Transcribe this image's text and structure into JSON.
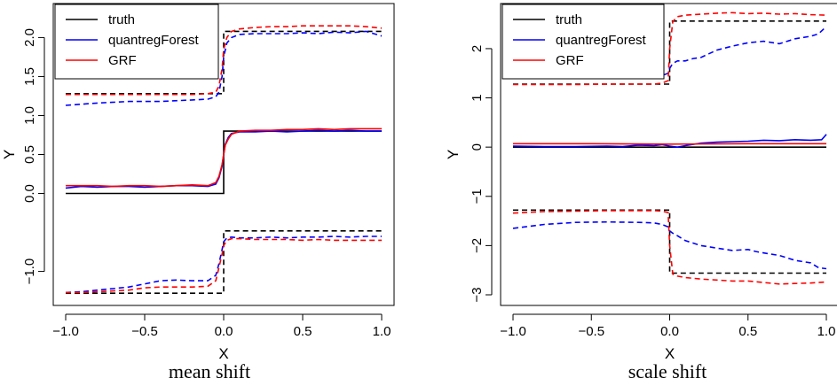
{
  "chart_data": [
    {
      "type": "line",
      "caption": "mean shift",
      "xlabel": "X",
      "ylabel": "Y",
      "xlim": [
        -1.0,
        1.0
      ],
      "ylim": [
        -1.3,
        2.3
      ],
      "xticks": [
        -1.0,
        -0.5,
        0.0,
        0.5,
        1.0
      ],
      "xtick_labels": [
        "−1.0",
        "−0.5",
        "0.0",
        "0.5",
        "1.0"
      ],
      "yticks": [
        -1.0,
        0.0,
        0.5,
        1.0,
        1.5,
        2.0
      ],
      "ytick_labels": [
        "−1.0",
        "0.0",
        "0.5",
        "1.0",
        "1.5",
        "2.0"
      ],
      "grid": false,
      "legend": {
        "placement": "top-left",
        "entries": [
          {
            "label": "truth",
            "color": "#000000"
          },
          {
            "label": "quantregForest",
            "color": "#0000ff"
          },
          {
            "label": "GRF",
            "color": "#ff0000"
          }
        ]
      },
      "series": [
        {
          "name": "truth",
          "quantile": "median",
          "color": "#000000",
          "dash": false,
          "x": [
            -1.0,
            0.0,
            0.0,
            1.0
          ],
          "y": [
            0.0,
            0.0,
            0.8,
            0.8
          ]
        },
        {
          "name": "truth",
          "quantile": "upper",
          "color": "#000000",
          "dash": true,
          "x": [
            -1.0,
            0.0,
            0.0,
            1.0
          ],
          "y": [
            1.28,
            1.28,
            2.08,
            2.08
          ]
        },
        {
          "name": "truth",
          "quantile": "lower",
          "color": "#000000",
          "dash": true,
          "x": [
            -1.0,
            0.0,
            0.0,
            1.0
          ],
          "y": [
            -1.28,
            -1.28,
            -0.48,
            -0.48
          ]
        },
        {
          "name": "quantregForest",
          "quantile": "median",
          "color": "#0000ff",
          "dash": false,
          "x": [
            -1.0,
            -0.9,
            -0.8,
            -0.7,
            -0.6,
            -0.5,
            -0.4,
            -0.3,
            -0.2,
            -0.1,
            -0.05,
            -0.03,
            -0.01,
            0.0,
            0.01,
            0.03,
            0.05,
            0.1,
            0.2,
            0.3,
            0.4,
            0.5,
            0.6,
            0.7,
            0.8,
            0.9,
            1.0
          ],
          "y": [
            0.07,
            0.09,
            0.08,
            0.09,
            0.09,
            0.08,
            0.09,
            0.1,
            0.1,
            0.09,
            0.12,
            0.2,
            0.35,
            0.5,
            0.63,
            0.72,
            0.77,
            0.79,
            0.79,
            0.8,
            0.79,
            0.8,
            0.81,
            0.8,
            0.81,
            0.8,
            0.8
          ]
        },
        {
          "name": "GRF",
          "quantile": "median",
          "color": "#ff0000",
          "dash": false,
          "x": [
            -1.0,
            -0.9,
            -0.8,
            -0.7,
            -0.6,
            -0.5,
            -0.4,
            -0.3,
            -0.2,
            -0.1,
            -0.05,
            -0.03,
            -0.01,
            0.0,
            0.01,
            0.03,
            0.05,
            0.1,
            0.2,
            0.3,
            0.4,
            0.5,
            0.6,
            0.7,
            0.8,
            0.9,
            1.0
          ],
          "y": [
            0.1,
            0.1,
            0.1,
            0.09,
            0.1,
            0.1,
            0.09,
            0.1,
            0.11,
            0.1,
            0.14,
            0.22,
            0.37,
            0.5,
            0.62,
            0.7,
            0.76,
            0.8,
            0.81,
            0.81,
            0.82,
            0.82,
            0.83,
            0.82,
            0.83,
            0.83,
            0.83
          ]
        },
        {
          "name": "quantregForest",
          "quantile": "upper",
          "color": "#0000ff",
          "dash": true,
          "x": [
            -1.0,
            -0.8,
            -0.6,
            -0.4,
            -0.2,
            -0.1,
            -0.05,
            -0.03,
            -0.01,
            0.0,
            0.02,
            0.05,
            0.1,
            0.2,
            0.3,
            0.4,
            0.5,
            0.6,
            0.7,
            0.8,
            0.9,
            0.95,
            1.0
          ],
          "y": [
            1.13,
            1.16,
            1.18,
            1.18,
            1.2,
            1.21,
            1.24,
            1.3,
            1.5,
            1.75,
            1.93,
            2.0,
            2.04,
            2.05,
            2.05,
            2.05,
            2.06,
            2.05,
            2.07,
            2.06,
            2.08,
            2.05,
            2.02
          ]
        },
        {
          "name": "GRF",
          "quantile": "upper",
          "color": "#ff0000",
          "dash": true,
          "x": [
            -1.0,
            -0.8,
            -0.6,
            -0.4,
            -0.2,
            -0.1,
            -0.05,
            -0.03,
            -0.01,
            0.0,
            0.02,
            0.05,
            0.1,
            0.2,
            0.3,
            0.4,
            0.5,
            0.6,
            0.7,
            0.8,
            0.9,
            1.0
          ],
          "y": [
            1.27,
            1.27,
            1.27,
            1.27,
            1.27,
            1.28,
            1.3,
            1.38,
            1.6,
            1.85,
            2.0,
            2.08,
            2.11,
            2.13,
            2.14,
            2.14,
            2.15,
            2.15,
            2.15,
            2.15,
            2.14,
            2.12
          ]
        },
        {
          "name": "quantregForest",
          "quantile": "lower",
          "color": "#0000ff",
          "dash": true,
          "x": [
            -1.0,
            -0.9,
            -0.8,
            -0.7,
            -0.6,
            -0.5,
            -0.4,
            -0.3,
            -0.2,
            -0.1,
            -0.05,
            -0.03,
            -0.01,
            0.0,
            0.02,
            0.05,
            0.1,
            0.2,
            0.3,
            0.4,
            0.5,
            0.6,
            0.7,
            0.8,
            0.9,
            1.0
          ],
          "y": [
            -1.27,
            -1.26,
            -1.24,
            -1.22,
            -1.2,
            -1.16,
            -1.12,
            -1.11,
            -1.12,
            -1.12,
            -1.05,
            -0.9,
            -0.72,
            -0.62,
            -0.57,
            -0.56,
            -0.57,
            -0.57,
            -0.56,
            -0.57,
            -0.56,
            -0.56,
            -0.55,
            -0.56,
            -0.55,
            -0.55
          ]
        },
        {
          "name": "GRF",
          "quantile": "lower",
          "color": "#ff0000",
          "dash": true,
          "x": [
            -1.0,
            -0.9,
            -0.8,
            -0.7,
            -0.6,
            -0.5,
            -0.4,
            -0.3,
            -0.2,
            -0.1,
            -0.05,
            -0.03,
            -0.01,
            0.0,
            0.02,
            0.05,
            0.1,
            0.2,
            0.3,
            0.4,
            0.5,
            0.6,
            0.7,
            0.8,
            0.9,
            1.0
          ],
          "y": [
            -1.27,
            -1.27,
            -1.26,
            -1.25,
            -1.24,
            -1.21,
            -1.2,
            -1.2,
            -1.2,
            -1.19,
            -1.12,
            -0.95,
            -0.78,
            -0.67,
            -0.6,
            -0.58,
            -0.58,
            -0.59,
            -0.59,
            -0.59,
            -0.6,
            -0.59,
            -0.6,
            -0.6,
            -0.6,
            -0.6
          ]
        }
      ]
    },
    {
      "type": "line",
      "caption": "scale shift",
      "xlabel": "X",
      "ylabel": "Y",
      "xlim": [
        -1.0,
        1.0
      ],
      "ylim": [
        -3.0,
        2.7
      ],
      "xticks": [
        -1.0,
        -0.5,
        0.0,
        0.5,
        1.0
      ],
      "xtick_labels": [
        "−1.0",
        "−0.5",
        "0.0",
        "0.5",
        "1.0"
      ],
      "yticks": [
        -3,
        -2,
        -1,
        0,
        1,
        2
      ],
      "ytick_labels": [
        "−3",
        "−2",
        "−1",
        "0",
        "1",
        "2"
      ],
      "grid": false,
      "legend": {
        "placement": "top-left",
        "entries": [
          {
            "label": "truth",
            "color": "#000000"
          },
          {
            "label": "quantregForest",
            "color": "#0000ff"
          },
          {
            "label": "GRF",
            "color": "#ff0000"
          }
        ]
      },
      "series": [
        {
          "name": "truth",
          "quantile": "median",
          "color": "#000000",
          "dash": false,
          "x": [
            -1.0,
            1.0
          ],
          "y": [
            0.0,
            0.0
          ]
        },
        {
          "name": "truth",
          "quantile": "upper",
          "color": "#000000",
          "dash": true,
          "x": [
            -1.0,
            0.0,
            0.0,
            1.0
          ],
          "y": [
            1.28,
            1.28,
            2.56,
            2.56
          ]
        },
        {
          "name": "truth",
          "quantile": "lower",
          "color": "#000000",
          "dash": true,
          "x": [
            -1.0,
            0.0,
            0.0,
            1.0
          ],
          "y": [
            -1.28,
            -1.28,
            -2.56,
            -2.56
          ]
        },
        {
          "name": "quantregForest",
          "quantile": "median",
          "color": "#0000ff",
          "dash": false,
          "x": [
            -1.0,
            -0.8,
            -0.6,
            -0.4,
            -0.3,
            -0.2,
            -0.1,
            -0.05,
            0.0,
            0.05,
            0.1,
            0.2,
            0.3,
            0.4,
            0.5,
            0.6,
            0.7,
            0.8,
            0.9,
            0.97,
            0.99,
            1.0
          ],
          "y": [
            0.02,
            0.01,
            0.01,
            0.02,
            0.01,
            0.04,
            0.03,
            0.05,
            0.02,
            0.0,
            0.03,
            0.08,
            0.1,
            0.11,
            0.12,
            0.14,
            0.13,
            0.15,
            0.14,
            0.15,
            0.22,
            0.26
          ]
        },
        {
          "name": "GRF",
          "quantile": "median",
          "color": "#ff0000",
          "dash": false,
          "x": [
            -1.0,
            -0.5,
            0.0,
            0.5,
            1.0
          ],
          "y": [
            0.07,
            0.07,
            0.06,
            0.07,
            0.07
          ]
        },
        {
          "name": "quantregForest",
          "quantile": "upper",
          "color": "#0000ff",
          "dash": true,
          "x": [
            -1.0,
            -0.8,
            -0.6,
            -0.4,
            -0.2,
            -0.1,
            -0.05,
            -0.01,
            0.0,
            0.02,
            0.05,
            0.1,
            0.15,
            0.2,
            0.3,
            0.4,
            0.5,
            0.6,
            0.7,
            0.8,
            0.9,
            0.95,
            1.0
          ],
          "y": [
            1.45,
            1.43,
            1.47,
            1.46,
            1.47,
            1.46,
            1.45,
            1.5,
            1.6,
            1.7,
            1.75,
            1.75,
            1.8,
            1.82,
            1.97,
            2.05,
            2.12,
            2.15,
            2.1,
            2.2,
            2.25,
            2.3,
            2.45
          ]
        },
        {
          "name": "GRF",
          "quantile": "upper",
          "color": "#ff0000",
          "dash": true,
          "x": [
            -1.0,
            -0.8,
            -0.6,
            -0.4,
            -0.2,
            -0.1,
            -0.05,
            -0.01,
            0.0,
            0.02,
            0.05,
            0.1,
            0.2,
            0.3,
            0.4,
            0.5,
            0.6,
            0.7,
            0.8,
            0.9,
            1.0
          ],
          "y": [
            1.27,
            1.27,
            1.27,
            1.28,
            1.28,
            1.28,
            1.3,
            1.35,
            2.0,
            2.55,
            2.65,
            2.68,
            2.7,
            2.72,
            2.73,
            2.71,
            2.72,
            2.7,
            2.71,
            2.69,
            2.68
          ]
        },
        {
          "name": "quantregForest",
          "quantile": "lower",
          "color": "#0000ff",
          "dash": true,
          "x": [
            -1.0,
            -0.8,
            -0.6,
            -0.4,
            -0.2,
            -0.1,
            -0.05,
            -0.01,
            0.0,
            0.02,
            0.05,
            0.1,
            0.15,
            0.2,
            0.3,
            0.4,
            0.5,
            0.55,
            0.6,
            0.7,
            0.8,
            0.9,
            0.95,
            1.0
          ],
          "y": [
            -1.65,
            -1.57,
            -1.53,
            -1.52,
            -1.53,
            -1.54,
            -1.57,
            -1.62,
            -1.7,
            -1.75,
            -1.8,
            -1.9,
            -1.95,
            -2.0,
            -2.05,
            -2.1,
            -2.08,
            -2.12,
            -2.15,
            -2.2,
            -2.3,
            -2.35,
            -2.45,
            -2.47
          ]
        },
        {
          "name": "GRF",
          "quantile": "lower",
          "color": "#ff0000",
          "dash": true,
          "x": [
            -1.0,
            -0.8,
            -0.6,
            -0.4,
            -0.2,
            -0.1,
            -0.05,
            -0.01,
            0.0,
            0.02,
            0.05,
            0.1,
            0.2,
            0.3,
            0.4,
            0.5,
            0.6,
            0.7,
            0.8,
            0.9,
            1.0
          ],
          "y": [
            -1.34,
            -1.31,
            -1.3,
            -1.29,
            -1.29,
            -1.29,
            -1.3,
            -1.33,
            -2.0,
            -2.58,
            -2.62,
            -2.65,
            -2.68,
            -2.7,
            -2.72,
            -2.72,
            -2.75,
            -2.78,
            -2.77,
            -2.76,
            -2.74
          ]
        }
      ]
    }
  ]
}
